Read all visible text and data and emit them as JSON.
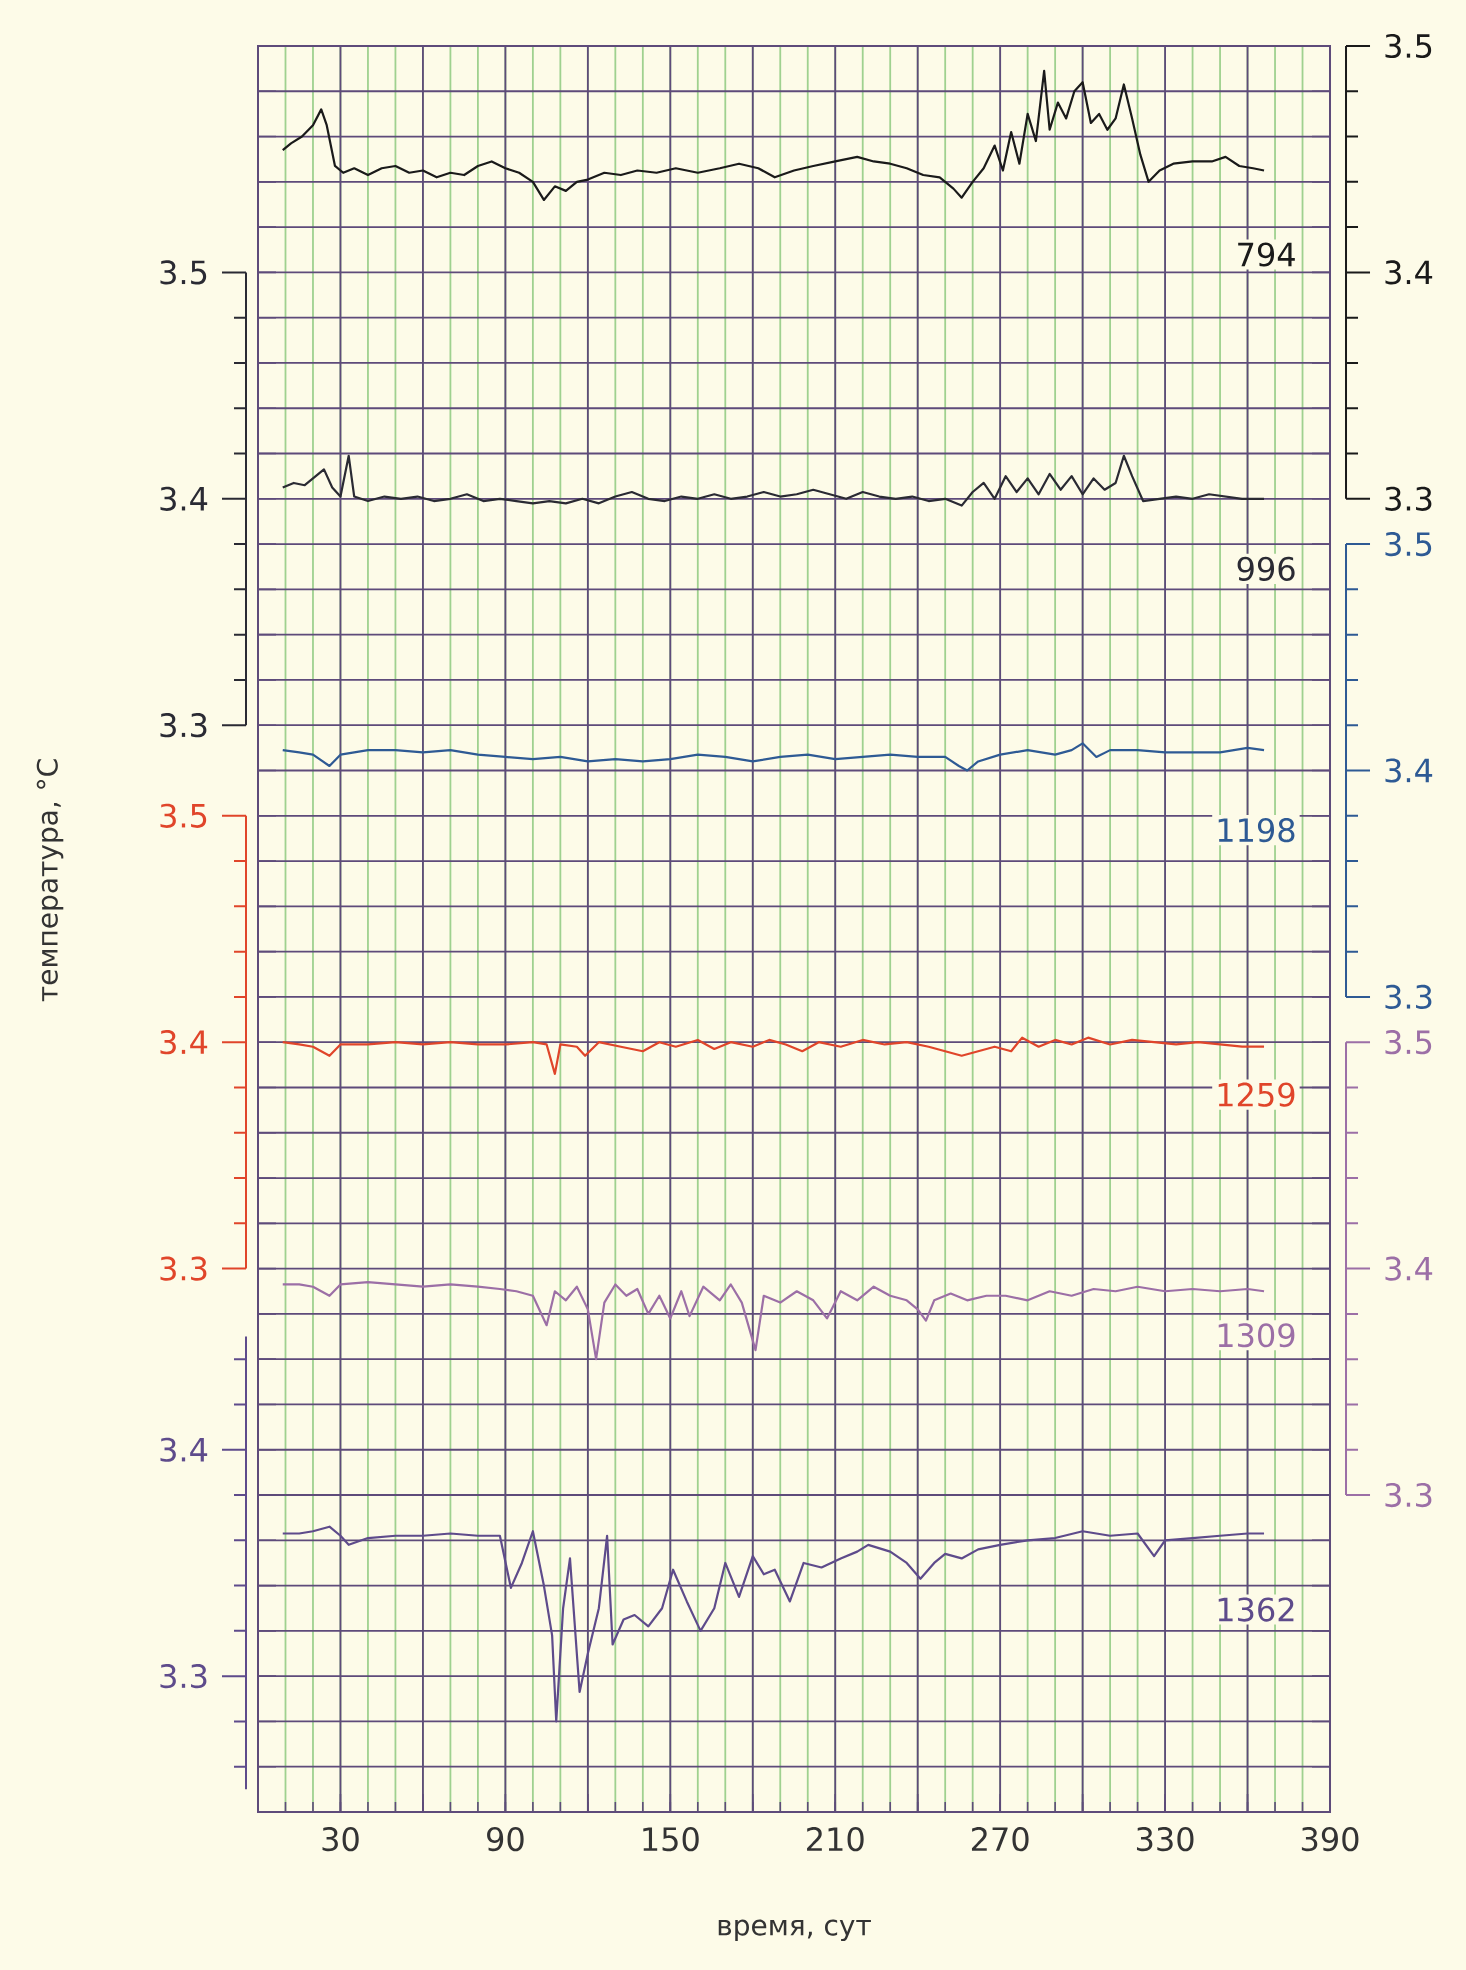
{
  "chart_data": [
    {
      "type": "line",
      "xlim": [
        0,
        390
      ],
      "tick_labels": "y",
      "y2lim": [
        3.3,
        3.5
      ],
      "y2ticks": [
        3.3,
        {
          "value": 3.32,
          "label": null
        },
        {
          "value": 3.34,
          "label": null
        },
        {
          "value": 3.36,
          "label": null
        },
        {
          "value": 3.38,
          "label": null
        },
        3.4,
        {
          "value": 3.42,
          "label": null
        },
        {
          "value": 3.44,
          "label": null
        },
        {
          "value": 3.46,
          "label": null
        },
        {
          "value": 3.48,
          "label": null
        },
        3.5
      ],
      "series": [
        {
          "name": "794",
          "color": "#1a1a1a",
          "axis": "y2",
          "x": [
            9,
            12,
            16,
            20,
            23,
            25,
            28,
            31,
            35,
            40,
            45,
            50,
            55,
            60,
            65,
            70,
            75,
            80,
            85,
            90,
            95,
            100,
            104,
            108,
            112,
            116,
            120,
            126,
            132,
            138,
            145,
            152,
            160,
            168,
            175,
            182,
            188,
            195,
            202,
            210,
            218,
            224,
            230,
            236,
            242,
            248,
            253,
            256,
            260,
            264,
            268,
            271,
            274,
            277,
            280,
            283,
            286,
            288,
            291,
            294,
            297,
            300,
            303,
            306,
            309,
            312,
            315,
            318,
            321,
            324,
            328,
            333,
            340,
            347,
            352,
            357,
            362,
            366
          ],
          "values": [
            3.454,
            3.457,
            3.46,
            3.465,
            3.472,
            3.465,
            3.447,
            3.444,
            3.446,
            3.443,
            3.446,
            3.447,
            3.444,
            3.445,
            3.442,
            3.444,
            3.443,
            3.447,
            3.449,
            3.446,
            3.444,
            3.44,
            3.432,
            3.438,
            3.436,
            3.44,
            3.441,
            3.444,
            3.443,
            3.445,
            3.444,
            3.446,
            3.444,
            3.446,
            3.448,
            3.446,
            3.442,
            3.445,
            3.447,
            3.449,
            3.451,
            3.449,
            3.448,
            3.446,
            3.443,
            3.442,
            3.437,
            3.433,
            3.44,
            3.446,
            3.456,
            3.445,
            3.462,
            3.448,
            3.47,
            3.458,
            3.489,
            3.463,
            3.475,
            3.468,
            3.48,
            3.484,
            3.466,
            3.47,
            3.463,
            3.468,
            3.483,
            3.468,
            3.452,
            3.44,
            3.445,
            3.448,
            3.449,
            3.449,
            3.451,
            3.447,
            3.446,
            3.445
          ]
        }
      ]
    },
    {
      "type": "line",
      "xlim": [
        0,
        390
      ],
      "tick_labels": "y",
      "ylim": [
        3.3,
        3.5
      ],
      "yticks": [
        3.3,
        {
          "value": 3.32,
          "label": null
        },
        {
          "value": 3.34,
          "label": null
        },
        {
          "value": 3.36,
          "label": null
        },
        {
          "value": 3.38,
          "label": null
        },
        3.4,
        {
          "value": 3.42,
          "label": null
        },
        {
          "value": 3.44,
          "label": null
        },
        {
          "value": 3.46,
          "label": null
        },
        {
          "value": 3.48,
          "label": null
        },
        3.5
      ],
      "series": [
        {
          "name": "996",
          "color": "#2a2a33",
          "x": [
            9,
            13,
            17,
            21,
            24,
            27,
            30,
            33,
            35,
            40,
            46,
            52,
            58,
            64,
            70,
            76,
            82,
            88,
            94,
            100,
            106,
            112,
            118,
            124,
            130,
            136,
            142,
            148,
            154,
            160,
            166,
            172,
            178,
            184,
            190,
            196,
            202,
            208,
            214,
            220,
            226,
            232,
            238,
            244,
            250,
            256,
            260,
            264,
            268,
            272,
            276,
            280,
            284,
            288,
            292,
            296,
            300,
            304,
            308,
            312,
            315,
            318,
            322,
            328,
            334,
            340,
            346,
            352,
            358,
            366
          ],
          "values": [
            3.405,
            3.407,
            3.406,
            3.41,
            3.413,
            3.405,
            3.401,
            3.419,
            3.401,
            3.399,
            3.401,
            3.4,
            3.401,
            3.399,
            3.4,
            3.402,
            3.399,
            3.4,
            3.399,
            3.398,
            3.399,
            3.398,
            3.4,
            3.398,
            3.401,
            3.403,
            3.4,
            3.399,
            3.401,
            3.4,
            3.402,
            3.4,
            3.401,
            3.403,
            3.401,
            3.402,
            3.404,
            3.402,
            3.4,
            3.403,
            3.401,
            3.4,
            3.401,
            3.399,
            3.4,
            3.397,
            3.403,
            3.407,
            3.4,
            3.41,
            3.403,
            3.409,
            3.402,
            3.411,
            3.404,
            3.41,
            3.402,
            3.409,
            3.404,
            3.407,
            3.419,
            3.41,
            3.399,
            3.4,
            3.401,
            3.4,
            3.402,
            3.401,
            3.4,
            3.4
          ]
        }
      ]
    },
    {
      "type": "line",
      "xlim": [
        0,
        390
      ],
      "tick_labels": "y",
      "y2lim": [
        3.3,
        3.5
      ],
      "y2ticks": [
        3.3,
        {
          "value": 3.32,
          "label": null
        },
        {
          "value": 3.34,
          "label": null
        },
        {
          "value": 3.36,
          "label": null
        },
        {
          "value": 3.38,
          "label": null
        },
        3.4,
        {
          "value": 3.42,
          "label": null
        },
        {
          "value": 3.44,
          "label": null
        },
        {
          "value": 3.46,
          "label": null
        },
        {
          "value": 3.48,
          "label": null
        },
        3.5
      ],
      "series": [
        {
          "name": "1198",
          "color": "#2e5a94",
          "axis": "y2",
          "x": [
            9,
            15,
            20,
            26,
            30,
            40,
            50,
            60,
            70,
            80,
            90,
            100,
            110,
            120,
            130,
            140,
            150,
            160,
            170,
            180,
            190,
            200,
            210,
            220,
            230,
            240,
            250,
            255,
            258,
            262,
            270,
            280,
            290,
            296,
            300,
            305,
            310,
            320,
            330,
            340,
            350,
            360,
            366
          ],
          "values": [
            3.409,
            3.408,
            3.407,
            3.402,
            3.407,
            3.409,
            3.409,
            3.408,
            3.409,
            3.407,
            3.406,
            3.405,
            3.406,
            3.404,
            3.405,
            3.404,
            3.405,
            3.407,
            3.406,
            3.404,
            3.406,
            3.407,
            3.405,
            3.406,
            3.407,
            3.406,
            3.406,
            3.402,
            3.4,
            3.404,
            3.407,
            3.409,
            3.407,
            3.409,
            3.412,
            3.406,
            3.409,
            3.409,
            3.408,
            3.408,
            3.408,
            3.41,
            3.409
          ]
        }
      ]
    },
    {
      "type": "line",
      "xlim": [
        0,
        390
      ],
      "tick_labels": "y",
      "ylabel": "температура, °C",
      "ylim": [
        3.3,
        3.5
      ],
      "yticks": [
        3.3,
        {
          "value": 3.32,
          "label": null
        },
        {
          "value": 3.34,
          "label": null
        },
        {
          "value": 3.36,
          "label": null
        },
        {
          "value": 3.38,
          "label": null
        },
        3.4,
        {
          "value": 3.42,
          "label": null
        },
        {
          "value": 3.44,
          "label": null
        },
        {
          "value": 3.46,
          "label": null
        },
        {
          "value": 3.48,
          "label": null
        },
        3.5
      ],
      "series": [
        {
          "name": "1259",
          "color": "#e0452a",
          "x": [
            9,
            15,
            20,
            26,
            30,
            40,
            50,
            60,
            70,
            80,
            90,
            100,
            105,
            108,
            110,
            116,
            119,
            124,
            132,
            140,
            146,
            152,
            160,
            166,
            172,
            180,
            186,
            192,
            198,
            204,
            212,
            220,
            228,
            236,
            244,
            250,
            256,
            262,
            268,
            274,
            278,
            284,
            290,
            296,
            302,
            310,
            318,
            326,
            334,
            342,
            350,
            358,
            366
          ],
          "values": [
            3.4,
            3.399,
            3.398,
            3.394,
            3.399,
            3.399,
            3.4,
            3.399,
            3.4,
            3.399,
            3.399,
            3.4,
            3.399,
            3.386,
            3.399,
            3.398,
            3.394,
            3.4,
            3.398,
            3.396,
            3.4,
            3.398,
            3.401,
            3.397,
            3.4,
            3.398,
            3.401,
            3.399,
            3.396,
            3.4,
            3.398,
            3.401,
            3.399,
            3.4,
            3.398,
            3.396,
            3.394,
            3.396,
            3.398,
            3.396,
            3.402,
            3.398,
            3.401,
            3.399,
            3.402,
            3.399,
            3.401,
            3.4,
            3.399,
            3.4,
            3.399,
            3.398,
            3.398
          ]
        }
      ]
    },
    {
      "type": "line",
      "xlim": [
        0,
        390
      ],
      "tick_labels": "y",
      "y2lim": [
        3.3,
        3.5
      ],
      "y2ticks": [
        3.3,
        {
          "value": 3.32,
          "label": null
        },
        {
          "value": 3.34,
          "label": null
        },
        {
          "value": 3.36,
          "label": null
        },
        {
          "value": 3.38,
          "label": null
        },
        3.4,
        {
          "value": 3.42,
          "label": null
        },
        {
          "value": 3.44,
          "label": null
        },
        {
          "value": 3.46,
          "label": null
        },
        {
          "value": 3.48,
          "label": null
        },
        3.5
      ],
      "series": [
        {
          "name": "1309",
          "color": "#9c6fa6",
          "axis": "y2",
          "x": [
            9,
            15,
            20,
            26,
            30,
            40,
            50,
            60,
            70,
            80,
            88,
            94,
            100,
            105,
            108,
            112,
            116,
            120,
            123,
            126,
            130,
            134,
            138,
            142,
            146,
            150,
            154,
            157,
            162,
            168,
            172,
            176,
            181,
            184,
            190,
            196,
            202,
            207,
            212,
            218,
            224,
            230,
            236,
            240,
            243,
            246,
            252,
            258,
            265,
            272,
            280,
            288,
            296,
            304,
            312,
            320,
            330,
            340,
            350,
            360,
            366
          ],
          "values": [
            3.393,
            3.393,
            3.392,
            3.388,
            3.393,
            3.394,
            3.393,
            3.392,
            3.393,
            3.392,
            3.391,
            3.39,
            3.388,
            3.375,
            3.39,
            3.386,
            3.392,
            3.382,
            3.36,
            3.385,
            3.393,
            3.388,
            3.391,
            3.38,
            3.388,
            3.378,
            3.39,
            3.379,
            3.392,
            3.386,
            3.393,
            3.385,
            3.364,
            3.388,
            3.385,
            3.39,
            3.386,
            3.378,
            3.39,
            3.386,
            3.392,
            3.388,
            3.386,
            3.382,
            3.377,
            3.386,
            3.389,
            3.386,
            3.388,
            3.388,
            3.386,
            3.39,
            3.388,
            3.391,
            3.39,
            3.392,
            3.39,
            3.391,
            3.39,
            3.391,
            3.39
          ]
        }
      ]
    },
    {
      "type": "line",
      "xlabel": "время, сут",
      "grid": true,
      "xlim": [
        0,
        390
      ],
      "xticks": [
        30,
        {
          "value": 60,
          "label": null
        },
        90,
        {
          "value": 120,
          "label": null
        },
        150,
        {
          "value": 180,
          "label": null
        },
        210,
        {
          "value": 240,
          "label": null
        },
        270,
        {
          "value": 300,
          "label": null
        },
        330,
        {
          "value": 360,
          "label": null
        },
        390
      ],
      "ylim": [
        3.25,
        3.45
      ],
      "yticks": [
        {
          "value": 3.26,
          "label": null
        },
        {
          "value": 3.28,
          "label": null
        },
        3.3,
        {
          "value": 3.32,
          "label": null
        },
        {
          "value": 3.34,
          "label": null
        },
        {
          "value": 3.36,
          "label": null
        },
        {
          "value": 3.38,
          "label": null
        },
        3.4,
        {
          "value": 3.42,
          "label": null
        },
        {
          "value": 3.44,
          "label": null
        }
      ],
      "series": [
        {
          "name": "1362",
          "color": "#5e4b8b",
          "x": [
            9,
            15,
            20,
            26,
            30,
            33,
            40,
            50,
            60,
            70,
            80,
            88,
            92,
            96,
            100,
            104,
            107,
            108.5,
            111,
            113.5,
            117,
            120,
            124,
            127,
            129,
            133,
            137,
            142,
            147,
            151,
            156,
            161,
            166,
            170,
            175,
            180,
            184,
            188,
            193.5,
            198.5,
            205,
            212,
            218,
            222,
            230,
            236,
            241,
            246,
            250,
            256,
            262,
            270,
            280,
            290,
            300,
            310,
            320,
            326,
            330,
            340,
            350,
            360,
            366
          ],
          "values": [
            3.363,
            3.363,
            3.364,
            3.366,
            3.362,
            3.358,
            3.361,
            3.362,
            3.362,
            3.363,
            3.362,
            3.362,
            3.339,
            3.35,
            3.364,
            3.34,
            3.318,
            3.28,
            3.33,
            3.352,
            3.293,
            3.31,
            3.33,
            3.362,
            3.314,
            3.325,
            3.327,
            3.322,
            3.33,
            3.347,
            3.333,
            3.32,
            3.33,
            3.35,
            3.335,
            3.353,
            3.345,
            3.347,
            3.333,
            3.35,
            3.348,
            3.352,
            3.355,
            3.358,
            3.355,
            3.35,
            3.343,
            3.35,
            3.354,
            3.352,
            3.356,
            3.358,
            3.36,
            3.361,
            3.364,
            3.362,
            3.363,
            3.353,
            3.36,
            3.361,
            3.362,
            3.363,
            3.363
          ]
        }
      ]
    }
  ]
}
